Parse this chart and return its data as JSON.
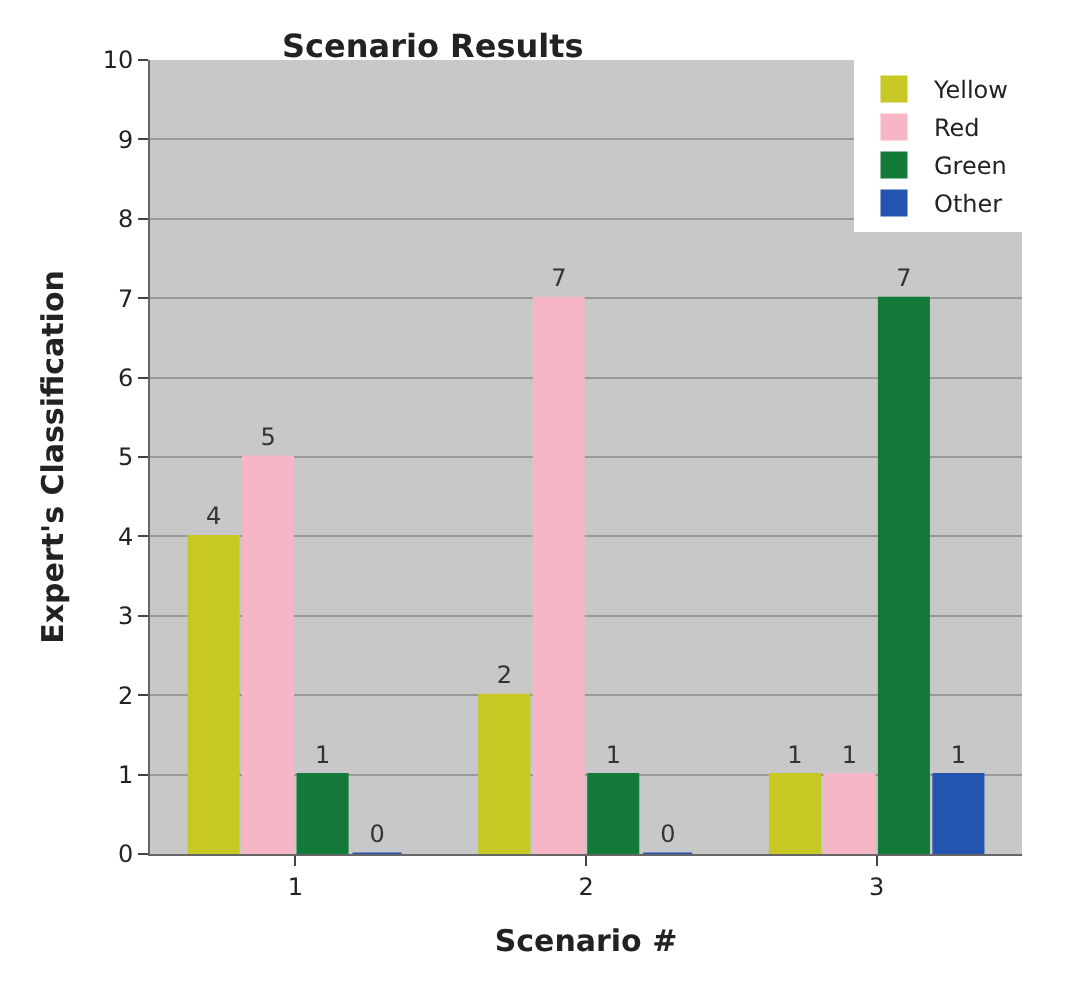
{
  "chart_data": {
    "type": "bar",
    "title": "Scenario Results",
    "xlabel": "Scenario #",
    "ylabel": "Expert's Classification",
    "categories": [
      "1",
      "2",
      "3"
    ],
    "series": [
      {
        "name": "Yellow",
        "color": "#c8c824",
        "values": [
          4,
          2,
          1
        ]
      },
      {
        "name": "Red",
        "color": "#f7b6c6",
        "values": [
          5,
          7,
          1
        ]
      },
      {
        "name": "Green",
        "color": "#137a3a",
        "values": [
          1,
          1,
          7
        ]
      },
      {
        "name": "Other",
        "color": "#2354b0",
        "values": [
          0,
          0,
          1
        ]
      }
    ],
    "ylim": [
      0,
      10
    ],
    "yticks": [
      0,
      1,
      2,
      3,
      4,
      5,
      6,
      7,
      8,
      9,
      10
    ],
    "grid": "y",
    "legend": "top right",
    "data_labels": true
  }
}
